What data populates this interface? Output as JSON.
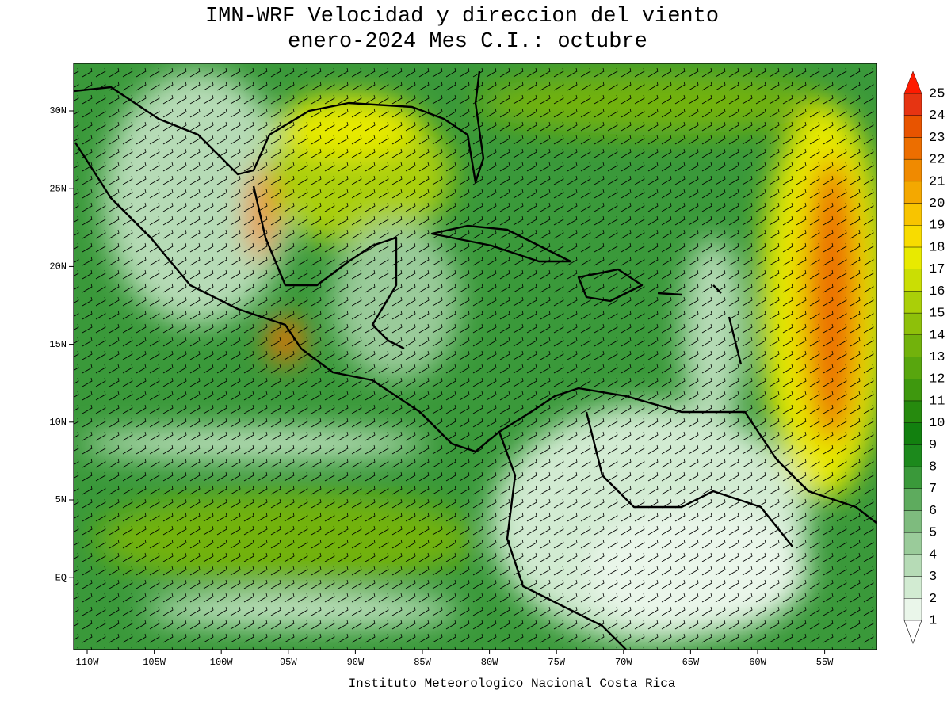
{
  "header": {
    "title": [
      "IMN-WRF Velocidad y direccion del viento",
      "enero-2024 Mes C.I.: octubre"
    ]
  },
  "map": {
    "xticks": [
      "110W",
      "105W",
      "100W",
      "95W",
      "90W",
      "85W",
      "80W",
      "75W",
      "70W",
      "65W",
      "60W",
      "55W"
    ],
    "yticks": [
      "30N",
      "25N",
      "20N",
      "15N",
      "10N",
      "5N",
      "EQ"
    ]
  },
  "colorbar": {
    "levels": [
      1,
      2,
      3,
      4,
      5,
      6,
      7,
      8,
      9,
      10,
      11,
      12,
      13,
      14,
      15,
      16,
      17,
      18,
      19,
      20,
      21,
      22,
      23,
      24,
      25
    ],
    "colors": [
      "#eaf6ea",
      "#d2ebd2",
      "#b6dbb6",
      "#9acb9a",
      "#7ebb7e",
      "#5eab5e",
      "#3a993a",
      "#1c891c",
      "#12800f",
      "#268a0e",
      "#3e980e",
      "#58a60e",
      "#72b20c",
      "#8ec00a",
      "#aacf08",
      "#cade04",
      "#e8ea00",
      "#f8dc00",
      "#f8c400",
      "#f4a800",
      "#f08a00",
      "#ec6e00",
      "#e85400",
      "#e63412",
      "#ff1a00"
    ]
  },
  "footer": "Instituto Meteorologico Nacional Costa Rica"
}
